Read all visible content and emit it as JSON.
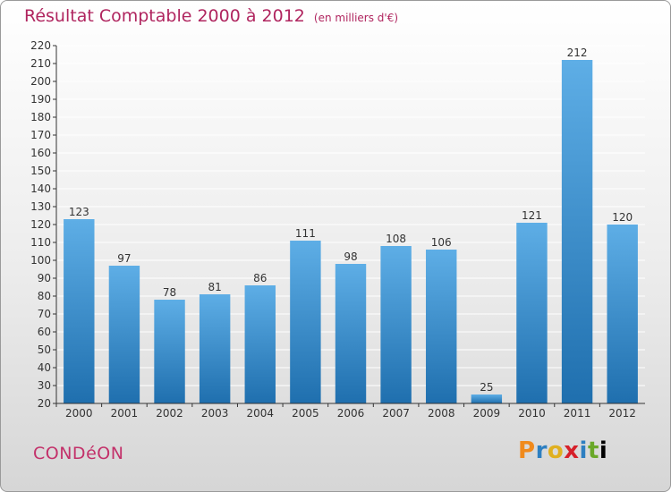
{
  "header": {
    "title": "Résultat Comptable 2000 à 2012",
    "subtitle": "(en milliers d'€)"
  },
  "footer": {
    "town": "CONDéON",
    "logo_letters": [
      "P",
      "r",
      "o",
      "x",
      "i",
      "t",
      "i"
    ]
  },
  "colors": {
    "title": "#b0255f",
    "bar_top": "#5eaee6",
    "bar_bottom": "#1f6fae",
    "axis": "#333333",
    "grid": "#ffffff"
  },
  "chart_data": {
    "type": "bar",
    "title": "Résultat Comptable 2000 à 2012",
    "subtitle": "(en milliers d'€)",
    "categories": [
      "2000",
      "2001",
      "2002",
      "2003",
      "2004",
      "2005",
      "2006",
      "2007",
      "2008",
      "2009",
      "2010",
      "2011",
      "2012"
    ],
    "values": [
      123,
      97,
      78,
      81,
      86,
      111,
      98,
      108,
      106,
      25,
      121,
      212,
      120
    ],
    "ylim": [
      20,
      220
    ],
    "yticks": [
      20,
      30,
      40,
      50,
      60,
      70,
      80,
      90,
      100,
      110,
      120,
      130,
      140,
      150,
      160,
      170,
      180,
      190,
      200,
      210,
      220
    ],
    "grid": true,
    "data_labels": true
  }
}
